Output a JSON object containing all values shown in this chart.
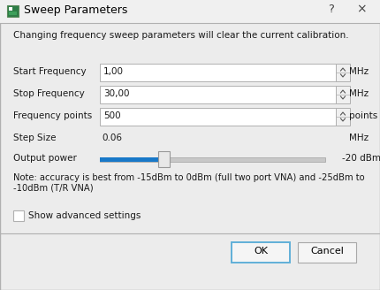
{
  "title": "Sweep Parameters",
  "dialog_bg": "#ececec",
  "warning_text": "Changing frequency sweep parameters will clear the current calibration.",
  "fields": [
    {
      "label": "Start Frequency",
      "value": "1,00",
      "unit": "MHz"
    },
    {
      "label": "Stop Frequency",
      "value": "30,00",
      "unit": "MHz"
    },
    {
      "label": "Frequency points",
      "value": "500",
      "unit": "points"
    }
  ],
  "step_label": "Step Size",
  "step_value": "0.06",
  "step_unit": "MHz",
  "output_label": "Output power",
  "output_value": "-20 dBm",
  "slider_fill_color": "#1878c8",
  "slider_track_color": "#c8c8c8",
  "slider_thumb_color": "#e8e8e8",
  "note_text": "Note: accuracy is best from -15dBm to 0dBm (full two port VNA) and -25dBm to\n-10dBm (T/R VNA)",
  "checkbox_label": "Show advanced settings",
  "ok_label": "OK",
  "cancel_label": "Cancel",
  "title_icon_border": "#5a8a5a",
  "title_icon_fill": "#2d7d46",
  "title_icon_inner": "#3da05a",
  "border_color": "#b0b0b0",
  "text_color": "#1a1a1a",
  "input_bg": "#ffffff",
  "button_border_ok": "#60b0d8",
  "button_border_cancel": "#a8a8a8",
  "help_char": "?",
  "close_char": "×",
  "titlebar_bg": "#f0f0f0"
}
